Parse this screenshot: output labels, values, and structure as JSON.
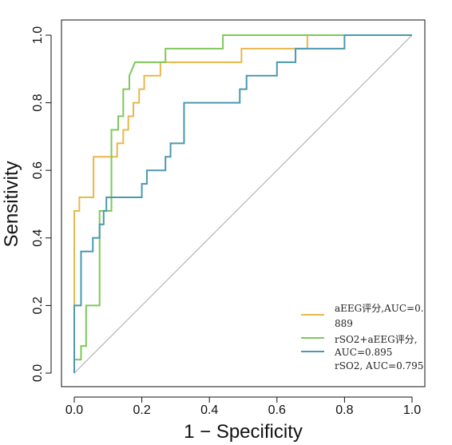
{
  "chart_data": {
    "type": "line",
    "title": "",
    "xlabel": "1 − Specificity",
    "ylabel": "Sensitivity",
    "xlim": [
      0,
      1
    ],
    "ylim": [
      0,
      1
    ],
    "xticks": [
      "0.0",
      "0.2",
      "0.4",
      "0.6",
      "0.8",
      "1.0"
    ],
    "yticks": [
      "0.0",
      "0.2",
      "0.4",
      "0.6",
      "0.8",
      "1.0"
    ],
    "grid": false,
    "legend_position": "bottom-right",
    "reference_line": {
      "from": [
        0,
        0
      ],
      "to": [
        1,
        1
      ],
      "color": "#aaaaaa"
    },
    "series": [
      {
        "name": "aEEG评分,AUC=0.889",
        "legend_lines": [
          "aEEG评分,AUC=0.",
          "889"
        ],
        "color": "#e8b84a",
        "points": [
          [
            0,
            0
          ],
          [
            0,
            0.48
          ],
          [
            0.015,
            0.48
          ],
          [
            0.015,
            0.52
          ],
          [
            0.057,
            0.52
          ],
          [
            0.057,
            0.64
          ],
          [
            0.127,
            0.64
          ],
          [
            0.127,
            0.68
          ],
          [
            0.145,
            0.68
          ],
          [
            0.145,
            0.72
          ],
          [
            0.16,
            0.72
          ],
          [
            0.16,
            0.76
          ],
          [
            0.175,
            0.76
          ],
          [
            0.175,
            0.8
          ],
          [
            0.192,
            0.8
          ],
          [
            0.192,
            0.84
          ],
          [
            0.207,
            0.84
          ],
          [
            0.207,
            0.88
          ],
          [
            0.255,
            0.88
          ],
          [
            0.255,
            0.92
          ],
          [
            0.495,
            0.92
          ],
          [
            0.495,
            0.96
          ],
          [
            0.69,
            0.96
          ],
          [
            0.69,
            1.0
          ],
          [
            1.0,
            1.0
          ]
        ]
      },
      {
        "name": "rSO2+aEEG评分,AUC=0.895",
        "legend_lines": [
          "rSO2+aEEG评分,",
          "AUC=0.895"
        ],
        "color": "#7ec85a",
        "points": [
          [
            0,
            0
          ],
          [
            0,
            0.04
          ],
          [
            0.02,
            0.04
          ],
          [
            0.02,
            0.08
          ],
          [
            0.035,
            0.08
          ],
          [
            0.035,
            0.2
          ],
          [
            0.075,
            0.2
          ],
          [
            0.075,
            0.48
          ],
          [
            0.11,
            0.48
          ],
          [
            0.11,
            0.72
          ],
          [
            0.13,
            0.72
          ],
          [
            0.13,
            0.76
          ],
          [
            0.145,
            0.76
          ],
          [
            0.145,
            0.84
          ],
          [
            0.163,
            0.84
          ],
          [
            0.163,
            0.88
          ],
          [
            0.18,
            0.92
          ],
          [
            0.27,
            0.92
          ],
          [
            0.27,
            0.96
          ],
          [
            0.44,
            0.96
          ],
          [
            0.44,
            1.0
          ],
          [
            1.0,
            1.0
          ]
        ]
      },
      {
        "name": "rSO2, AUC=0.795",
        "legend_lines": [
          "rSO2, AUC=0.795"
        ],
        "color": "#4a98b0",
        "points": [
          [
            0,
            0
          ],
          [
            0,
            0.2
          ],
          [
            0.02,
            0.2
          ],
          [
            0.02,
            0.36
          ],
          [
            0.055,
            0.36
          ],
          [
            0.055,
            0.4
          ],
          [
            0.075,
            0.4
          ],
          [
            0.075,
            0.44
          ],
          [
            0.087,
            0.44
          ],
          [
            0.087,
            0.48
          ],
          [
            0.095,
            0.48
          ],
          [
            0.095,
            0.52
          ],
          [
            0.2,
            0.52
          ],
          [
            0.2,
            0.56
          ],
          [
            0.215,
            0.56
          ],
          [
            0.215,
            0.6
          ],
          [
            0.27,
            0.6
          ],
          [
            0.27,
            0.64
          ],
          [
            0.285,
            0.64
          ],
          [
            0.285,
            0.68
          ],
          [
            0.325,
            0.68
          ],
          [
            0.325,
            0.8
          ],
          [
            0.49,
            0.8
          ],
          [
            0.49,
            0.84
          ],
          [
            0.51,
            0.84
          ],
          [
            0.51,
            0.88
          ],
          [
            0.6,
            0.88
          ],
          [
            0.6,
            0.92
          ],
          [
            0.655,
            0.92
          ],
          [
            0.655,
            0.96
          ],
          [
            0.8,
            0.96
          ],
          [
            0.8,
            1.0
          ],
          [
            1.0,
            1.0
          ]
        ]
      }
    ]
  }
}
